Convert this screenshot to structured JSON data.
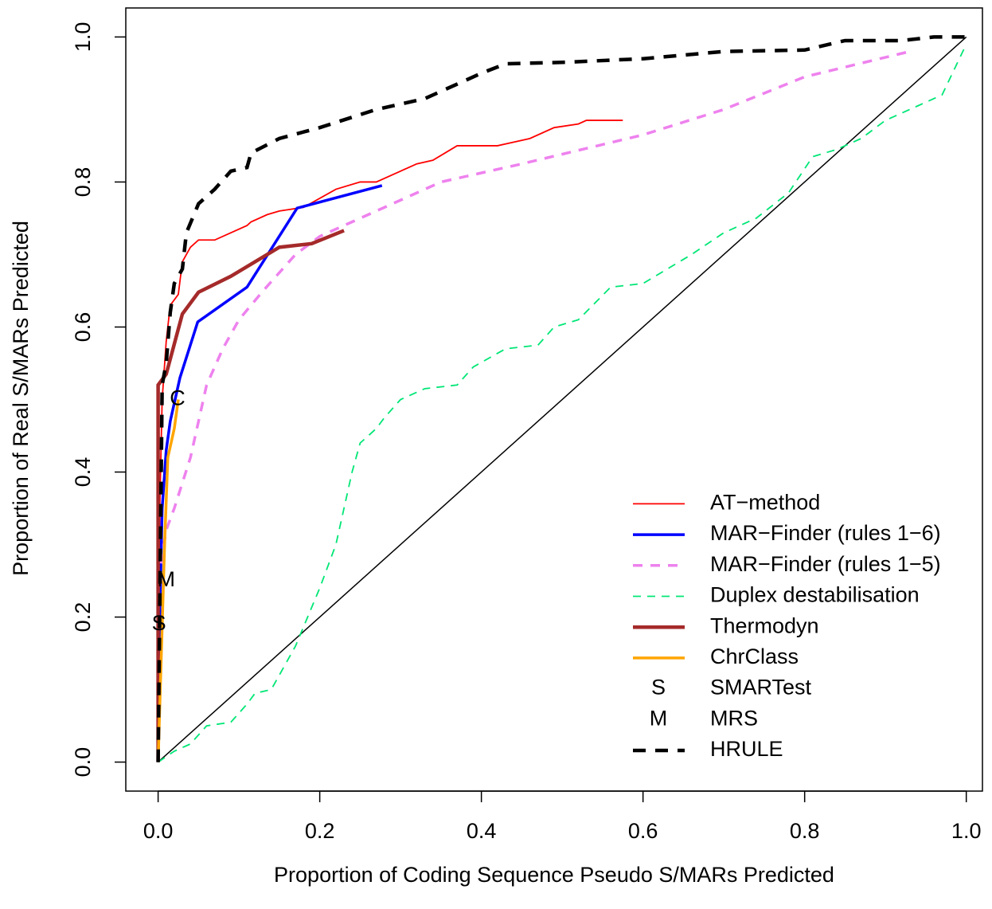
{
  "chart_data": {
    "type": "line",
    "xlabel": "Proportion of Coding Sequence Pseudo S/MARs Predicted",
    "ylabel": "Proportion of Real S/MARs Predicted",
    "xlim": [
      -0.04,
      1.02
    ],
    "ylim": [
      -0.04,
      1.04
    ],
    "xticks": [
      {
        "value": 0,
        "label": "0.0"
      },
      0.2,
      0.4,
      0.6,
      0.8,
      {
        "value": 1,
        "label": "1.0"
      }
    ],
    "yticks": [
      {
        "value": 0,
        "label": "0.0"
      },
      0.2,
      0.4,
      0.6,
      0.8,
      {
        "value": 1,
        "label": "1.0"
      }
    ],
    "legend": "bottomright",
    "diagonal": {
      "x": [
        0,
        1
      ],
      "values": [
        0,
        1
      ],
      "color": "#000000"
    },
    "series": [
      {
        "name": "AT−method",
        "color": "#ff0000",
        "width": 1.8,
        "dash": "",
        "x": [
          0,
          0.002,
          0.005,
          0.01,
          0.015,
          0.025,
          0.03,
          0.04,
          0.05,
          0.07,
          0.09,
          0.11,
          0.115,
          0.135,
          0.15,
          0.18,
          0.22,
          0.25,
          0.27,
          0.3,
          0.32,
          0.34,
          0.37,
          0.42,
          0.46,
          0.49,
          0.52,
          0.53,
          0.575
        ],
        "values": [
          0,
          0.35,
          0.5,
          0.58,
          0.63,
          0.645,
          0.69,
          0.71,
          0.72,
          0.72,
          0.73,
          0.74,
          0.745,
          0.755,
          0.76,
          0.765,
          0.79,
          0.8,
          0.8,
          0.815,
          0.825,
          0.83,
          0.85,
          0.85,
          0.86,
          0.875,
          0.88,
          0.885,
          0.885
        ]
      },
      {
        "name": "MAR−Finder (rules 1−6)",
        "color": "#0000ff",
        "width": 3.5,
        "dash": "",
        "x": [
          0,
          0.002,
          0.005,
          0.01,
          0.015,
          0.027,
          0.049,
          0.11,
          0.172,
          0.277
        ],
        "values": [
          0,
          0.2,
          0.35,
          0.43,
          0.47,
          0.53,
          0.607,
          0.655,
          0.764,
          0.795
        ]
      },
      {
        "name": "MAR−Finder (rules 1−5)",
        "color": "#ee82ee",
        "width": 3.5,
        "dash": "12 10",
        "x": [
          0,
          0.01,
          0.02,
          0.04,
          0.06,
          0.08,
          0.1,
          0.13,
          0.17,
          0.2,
          0.27,
          0.35,
          0.45,
          0.6,
          0.7,
          0.8,
          0.93
        ],
        "values": [
          0.25,
          0.32,
          0.35,
          0.42,
          0.52,
          0.57,
          0.61,
          0.65,
          0.7,
          0.725,
          0.76,
          0.8,
          0.825,
          0.865,
          0.9,
          0.945,
          0.98
        ]
      },
      {
        "name": "Duplex destabilisation",
        "color": "#00e676",
        "width": 1.8,
        "dash": "10 8",
        "x": [
          0,
          0.02,
          0.04,
          0.06,
          0.09,
          0.11,
          0.12,
          0.14,
          0.17,
          0.2,
          0.22,
          0.24,
          0.25,
          0.27,
          0.28,
          0.3,
          0.33,
          0.37,
          0.39,
          0.43,
          0.47,
          0.49,
          0.52,
          0.56,
          0.6,
          0.63,
          0.66,
          0.7,
          0.74,
          0.78,
          0.81,
          0.84,
          0.87,
          0.9,
          0.94,
          0.97,
          1
        ],
        "values": [
          0,
          0.015,
          0.025,
          0.05,
          0.055,
          0.08,
          0.095,
          0.1,
          0.16,
          0.24,
          0.3,
          0.4,
          0.44,
          0.46,
          0.475,
          0.5,
          0.515,
          0.52,
          0.545,
          0.57,
          0.575,
          0.6,
          0.61,
          0.655,
          0.66,
          0.68,
          0.7,
          0.73,
          0.75,
          0.785,
          0.835,
          0.845,
          0.86,
          0.885,
          0.905,
          0.92,
          0.99
        ]
      },
      {
        "name": "Thermodyn",
        "color": "#a52a2a",
        "width": 4.5,
        "dash": "",
        "x": [
          0,
          0,
          0.01,
          0.03,
          0.05,
          0.09,
          0.15,
          0.19,
          0.23
        ],
        "values": [
          0,
          0.52,
          0.535,
          0.618,
          0.648,
          0.67,
          0.71,
          0.715,
          0.733
        ]
      },
      {
        "name": "ChrClass",
        "color": "#ffa500",
        "width": 3.5,
        "dash": "",
        "x": [
          0,
          0.004,
          0.008,
          0.012,
          0.02,
          0.025
        ],
        "values": [
          0,
          0.15,
          0.3,
          0.42,
          0.46,
          0.5
        ]
      },
      {
        "name": "SMARTest",
        "color": "#000000",
        "marker": "S",
        "x": [
          0.001
        ],
        "values": [
          0.19
        ]
      },
      {
        "name": "MRS",
        "color": "#000000",
        "marker": "M",
        "x": [
          0.01
        ],
        "values": [
          0.25
        ]
      },
      {
        "name": "HRULE",
        "color": "#000000",
        "width": 4.5,
        "dash": "16 12",
        "x": [
          0,
          0.005,
          0.01,
          0.015,
          0.02,
          0.03,
          0.035,
          0.05,
          0.07,
          0.09,
          0.11,
          0.115,
          0.15,
          0.2,
          0.27,
          0.33,
          0.4,
          0.43,
          0.5,
          0.6,
          0.7,
          0.8,
          0.85,
          0.92,
          0.96,
          1
        ],
        "values": [
          0,
          0.52,
          0.55,
          0.62,
          0.66,
          0.68,
          0.73,
          0.77,
          0.79,
          0.815,
          0.82,
          0.84,
          0.86,
          0.875,
          0.9,
          0.915,
          0.95,
          0.963,
          0.965,
          0.97,
          0.98,
          0.982,
          0.995,
          0.995,
          1,
          1
        ]
      }
    ],
    "annotations": [
      {
        "text": "C",
        "x": 0.024,
        "y": 0.5
      }
    ]
  }
}
